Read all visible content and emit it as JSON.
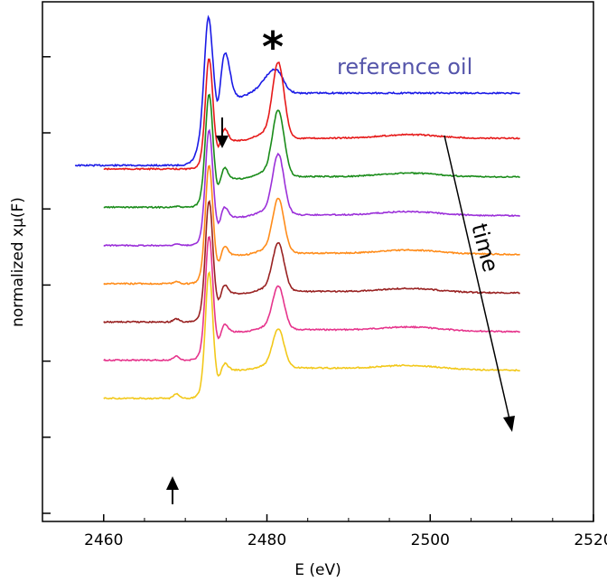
{
  "chart_data": {
    "type": "line",
    "title": "",
    "xlabel": "E (eV)",
    "ylabel": "normalized xμ(F)",
    "xlim": [
      2452.5,
      2520
    ],
    "x_ticks": [
      2460,
      2480,
      2500,
      2520
    ],
    "x_tick_labels": [
      "2460",
      "2480",
      "2500",
      "2520"
    ],
    "y_tick_count": 7,
    "grid": false,
    "legend": "none",
    "annotations": {
      "reference_label": "reference oil",
      "star": "*",
      "time_label": "time"
    },
    "series": [
      {
        "name": "reference oil",
        "color": "#1a1ae6",
        "x_start": 2456.5,
        "baseline": 0.0,
        "white_line": 0.0,
        "pre_edge": 0.0,
        "post_edge_drop": 0.0,
        "reference": true
      },
      {
        "color": "#e61919",
        "x_start": 2460,
        "baseline": 1,
        "white_line": 1.0,
        "pre_edge": 0.0,
        "post_edge_drop": 0.0
      },
      {
        "color": "#1a8c1a",
        "x_start": 2460,
        "baseline": 2,
        "white_line": 0.88,
        "pre_edge": 0.06,
        "post_edge_drop": 0.03
      },
      {
        "color": "#9b30d9",
        "x_start": 2460,
        "baseline": 3,
        "white_line": 0.8,
        "pre_edge": 0.12,
        "post_edge_drop": 0.06
      },
      {
        "color": "#ff8c1a",
        "x_start": 2460,
        "baseline": 4,
        "white_line": 0.72,
        "pre_edge": 0.18,
        "post_edge_drop": 0.09
      },
      {
        "color": "#992222",
        "x_start": 2460,
        "baseline": 5,
        "white_line": 0.64,
        "pre_edge": 0.24,
        "post_edge_drop": 0.12
      },
      {
        "color": "#e6348c",
        "x_start": 2460,
        "baseline": 6,
        "white_line": 0.58,
        "pre_edge": 0.3,
        "post_edge_drop": 0.15
      },
      {
        "color": "#f2c81a",
        "x_start": 2460,
        "baseline": 7,
        "white_line": 0.52,
        "pre_edge": 0.38,
        "post_edge_drop": 0.18
      }
    ]
  }
}
